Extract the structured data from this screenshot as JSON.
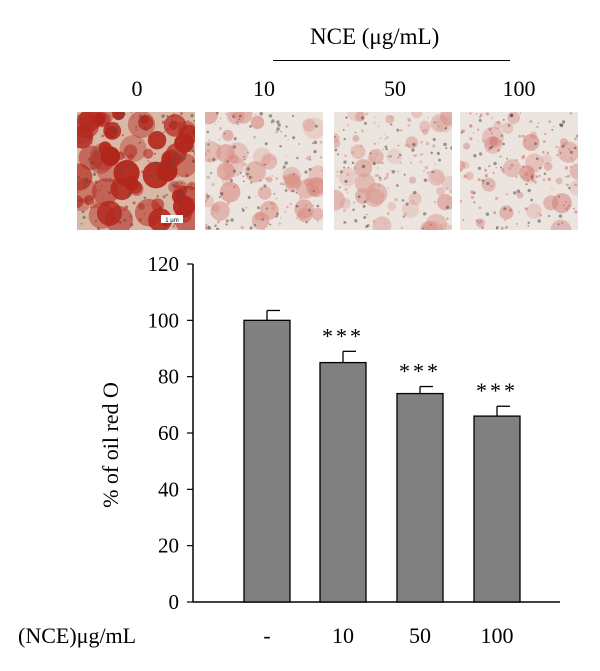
{
  "header": {
    "group_label": "NCE (μg/mL)",
    "concentrations": [
      "0",
      "10",
      "50",
      "100"
    ]
  },
  "micrographs": {
    "scale_label": "1 μm",
    "stain_colors": [
      "#b3261c",
      "#d88a80",
      "#d9988e",
      "#cf6f6a"
    ],
    "stain_density": [
      0.85,
      0.35,
      0.38,
      0.22
    ]
  },
  "chart_data": {
    "type": "bar",
    "categories": [
      "-",
      "10",
      "50",
      "100"
    ],
    "xlabel": "(NCE)μg/mL",
    "ylabel": "% of oil red O",
    "ylim": [
      0,
      120
    ],
    "yticks": [
      0,
      20,
      40,
      60,
      80,
      100,
      120
    ],
    "values": [
      100,
      85,
      74,
      66
    ],
    "errors": [
      3.5,
      4,
      2.5,
      3.5
    ],
    "annotations": [
      "",
      "***",
      "***",
      "***"
    ],
    "bar_color": "#808080",
    "grid": false
  }
}
